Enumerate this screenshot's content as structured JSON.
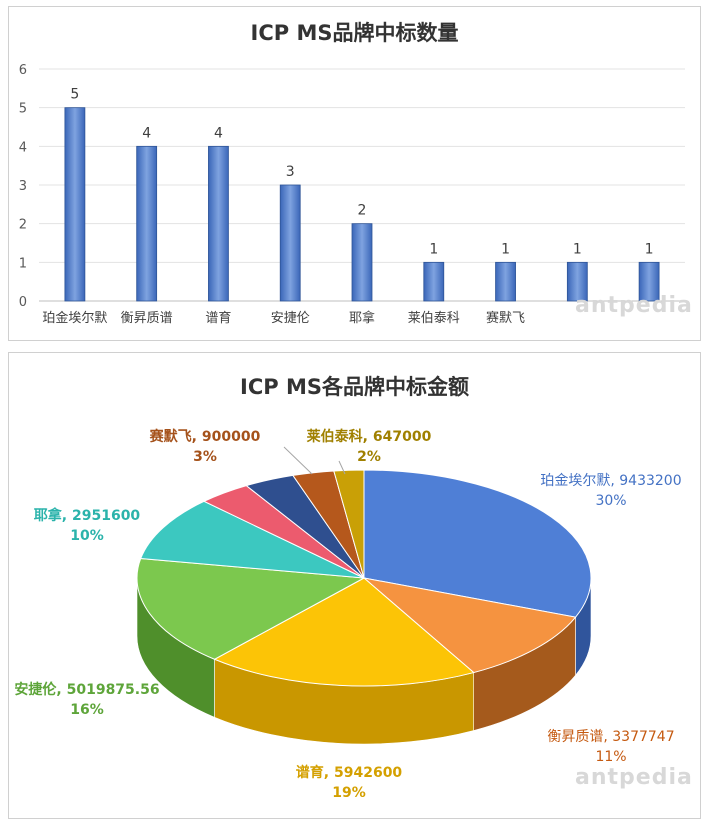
{
  "chart_data": [
    {
      "type": "bar",
      "title": "ICP MS品牌中标数量",
      "categories": [
        "珀金埃尔默",
        "衡昇质谱",
        "谱育",
        "安捷伦",
        "耶拿",
        "莱伯泰科",
        "赛默飞",
        "",
        ""
      ],
      "values": [
        5,
        4,
        4,
        3,
        2,
        1,
        1,
        1,
        1
      ],
      "ylim": [
        0,
        6
      ],
      "yticks": [
        0,
        1,
        2,
        3,
        4,
        5,
        6
      ],
      "grid": true,
      "bar_color": "#4472c4"
    },
    {
      "type": "pie",
      "title": "ICP MS各品牌中标金额",
      "slices": [
        {
          "label": "珀金埃尔默",
          "value": 9433200,
          "value_text": "9433200",
          "percent": "30%",
          "color": "#4f7fd6",
          "side": "#30559c",
          "text_color": "#4472c4"
        },
        {
          "label": "衡昇质谱",
          "value": 3377747,
          "value_text": "3377747",
          "percent": "11%",
          "color": "#f59340",
          "side": "#a55a1c",
          "text_color": "#c55a11"
        },
        {
          "label": "谱育",
          "value": 5942600,
          "value_text": "5942600",
          "percent": "19%",
          "color": "#fcc406",
          "side": "#c99700",
          "text_color": "#d4a000"
        },
        {
          "label": "安捷伦",
          "value": 5019875.56,
          "value_text": "5019875.56",
          "percent": "16%",
          "color": "#7cc84e",
          "side": "#4f8f2b",
          "text_color": "#5ea53a"
        },
        {
          "label": "耶拿",
          "value": 2951600,
          "value_text": "2951600",
          "percent": "10%",
          "color": "#3cc8c0",
          "side": "#238a84",
          "text_color": "#2bb3ab"
        },
        {
          "label": "",
          "value": 1150000,
          "value_text": "",
          "percent": "",
          "color": "#ec5b6e",
          "side": "#a33a48",
          "text_color": "#c9404f"
        },
        {
          "label": "",
          "value": 1100000,
          "value_text": "",
          "percent": "",
          "color": "#2f4f8f",
          "side": "#1d3361",
          "text_color": "#2f4f8f"
        },
        {
          "label": "赛默飞",
          "value": 900000,
          "value_text": "900000",
          "percent": "3%",
          "color": "#b5581c",
          "side": "#7a3a10",
          "text_color": "#a5521b"
        },
        {
          "label": "莱伯泰科",
          "value": 647000,
          "value_text": "647000",
          "percent": "2%",
          "color": "#c9a006",
          "side": "#8a6e04",
          "text_color": "#a08000"
        }
      ]
    }
  ],
  "watermark": "antpedia"
}
